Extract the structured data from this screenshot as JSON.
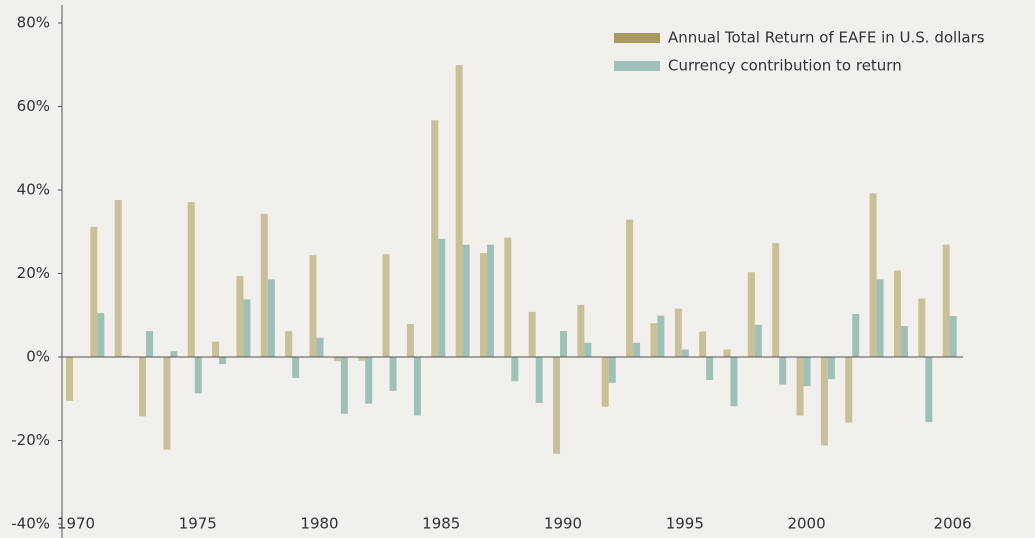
{
  "chart_data": {
    "type": "bar",
    "categories": [
      "1970",
      null,
      null,
      null,
      null,
      "1975",
      null,
      null,
      null,
      null,
      "1980",
      null,
      null,
      null,
      null,
      "1985",
      null,
      null,
      null,
      null,
      "1990",
      null,
      null,
      null,
      null,
      "1995",
      null,
      null,
      null,
      null,
      "2000",
      null,
      null,
      null,
      null,
      null,
      "2006"
    ],
    "series": [
      {
        "name": "Annual Total Return of EAFE in U.S. dollars",
        "color": "#c9c097",
        "values": [
          -10.5,
          31.2,
          37.6,
          -14.2,
          -22.2,
          37.1,
          3.7,
          19.4,
          34.3,
          6.2,
          24.4,
          -1.0,
          -0.9,
          24.6,
          7.9,
          56.7,
          69.9,
          24.9,
          28.6,
          10.8,
          -23.2,
          12.5,
          -11.9,
          32.9,
          8.1,
          11.6,
          6.1,
          1.8,
          20.3,
          27.3,
          -14.0,
          -21.2,
          -15.7,
          39.2,
          20.7,
          14.0,
          26.9
        ]
      },
      {
        "name": "Currency contribution to return",
        "color": "#9fc0b8",
        "values": [
          0.1,
          10.5,
          0.3,
          6.2,
          1.4,
          -8.7,
          -1.7,
          13.8,
          18.6,
          -5.0,
          4.6,
          -13.6,
          -11.2,
          -8.1,
          -14.0,
          28.3,
          26.9,
          26.9,
          -5.8,
          -11.0,
          6.2,
          3.4,
          -6.2,
          3.4,
          9.9,
          1.8,
          -5.5,
          -11.8,
          7.7,
          -6.6,
          -7.0,
          -5.3,
          10.3,
          18.6,
          7.4,
          -15.6,
          9.8
        ]
      }
    ],
    "ylim": [
      -40,
      80
    ],
    "yticks": [
      {
        "value": -40,
        "label": "-40%"
      },
      {
        "value": -20,
        "label": "-20%"
      },
      {
        "value": 0,
        "label": "0%"
      },
      {
        "value": 20,
        "label": "20%"
      },
      {
        "value": 40,
        "label": "40%"
      },
      {
        "value": 60,
        "label": "60%"
      },
      {
        "value": 80,
        "label": "80%"
      }
    ],
    "grid": false
  }
}
